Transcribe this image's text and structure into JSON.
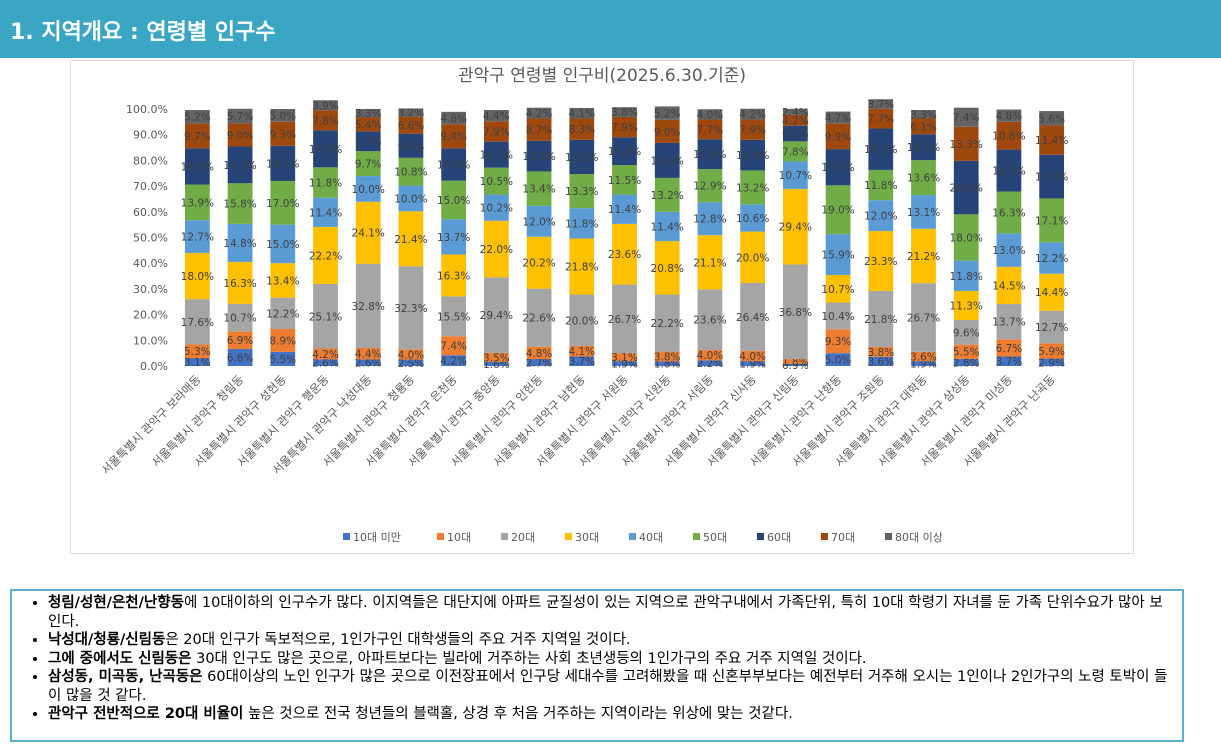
{
  "header": {
    "title": "1. 지역개요 : 연령별 인구수"
  },
  "chart_data": {
    "type": "bar",
    "stacked": true,
    "title": "관악구 연령별 인구비(2025.6.30.기준)",
    "ylim": [
      0,
      100
    ],
    "yticks": [
      "0.0%",
      "10.0%",
      "20.0%",
      "30.0%",
      "40.0%",
      "50.0%",
      "60.0%",
      "70.0%",
      "80.0%",
      "90.0%",
      "100.0%"
    ],
    "legend_position": "bottom",
    "categories": [
      "서울특별시 관악구 보라매동",
      "서울특별시 관악구 청림동",
      "서울특별시 관악구 성현동",
      "서울특별시 관악구 행운동",
      "서울특별시 관악구 낙성대동",
      "서울특별시 관악구 청룡동",
      "서울특별시 관악구 은천동",
      "서울특별시 관악구 중앙동",
      "서울특별시 관악구 인헌동",
      "서울특별시 관악구 남현동",
      "서울특별시 관악구 서원동",
      "서울특별시 관악구 신원동",
      "서울특별시 관악구 서림동",
      "서울특별시 관악구 신사동",
      "서울특별시 관악구 신림동",
      "서울특별시 관악구 난향동",
      "서울특별시 관악구 조원동",
      "서울특별시 관악구 대학동",
      "서울특별시 관악구 삼성동",
      "서울특별시 관악구 미성동",
      "서울특별시 관악구 난곡동"
    ],
    "series": [
      {
        "name": "10대 미만",
        "color": "#4472c4",
        "values": [
          3.1,
          6.6,
          5.5,
          2.6,
          2.6,
          2.5,
          4.2,
          1.6,
          2.7,
          3.7,
          1.9,
          1.8,
          2.2,
          1.9,
          0.9,
          5.0,
          3.6,
          1.9,
          2.8,
          3.7,
          2.9
        ]
      },
      {
        "name": "10대",
        "color": "#ed7d31",
        "values": [
          5.3,
          6.9,
          8.9,
          4.2,
          4.4,
          4.0,
          7.4,
          3.5,
          4.8,
          4.1,
          3.1,
          3.8,
          4.0,
          4.0,
          1.8,
          9.3,
          3.8,
          3.6,
          5.5,
          6.7,
          5.9
        ]
      },
      {
        "name": "20대",
        "color": "#a5a5a5",
        "values": [
          17.6,
          10.7,
          12.2,
          25.1,
          32.8,
          32.3,
          15.5,
          29.4,
          22.6,
          20.0,
          26.7,
          22.2,
          23.6,
          26.4,
          36.8,
          10.4,
          21.8,
          26.7,
          9.6,
          13.7,
          12.7
        ]
      },
      {
        "name": "30대",
        "color": "#ffc000",
        "values": [
          18.0,
          16.3,
          13.4,
          22.2,
          24.1,
          21.4,
          16.3,
          22.0,
          20.2,
          21.8,
          23.6,
          20.8,
          21.1,
          20.0,
          29.4,
          10.7,
          23.3,
          21.2,
          11.3,
          14.5,
          14.4
        ]
      },
      {
        "name": "40대",
        "color": "#5b9bd5",
        "values": [
          12.7,
          14.8,
          15.0,
          11.4,
          10.0,
          10.0,
          13.7,
          10.2,
          12.0,
          11.8,
          11.4,
          11.4,
          12.8,
          10.6,
          10.7,
          15.9,
          12.0,
          13.1,
          11.8,
          13.0,
          12.2
        ]
      },
      {
        "name": "50대",
        "color": "#70ad47",
        "values": [
          13.9,
          15.8,
          17.0,
          11.8,
          9.7,
          10.8,
          15.0,
          10.5,
          13.4,
          13.3,
          11.5,
          13.2,
          12.9,
          13.2,
          7.8,
          19.0,
          11.8,
          13.6,
          18.0,
          16.3,
          17.1
        ]
      },
      {
        "name": "60대",
        "color": "#264478",
        "values": [
          14.1,
          14.3,
          13.7,
          14.4,
          7.7,
          9.4,
          12.6,
          10.1,
          11.9,
          13.3,
          10.8,
          13.6,
          11.6,
          11.9,
          6.1,
          14.1,
          16.1,
          10.1,
          20.8,
          16.3,
          17.0
        ]
      },
      {
        "name": "70대",
        "color": "#9e480e",
        "values": [
          9.7,
          9.0,
          9.3,
          7.8,
          5.4,
          6.6,
          9.4,
          7.9,
          8.7,
          8.3,
          7.9,
          9.0,
          7.7,
          7.9,
          4.2,
          9.9,
          7.7,
          6.1,
          13.3,
          10.8,
          11.4
        ]
      },
      {
        "name": "80대 이상",
        "color": "#636363",
        "values": [
          5.2,
          5.7,
          5.0,
          3.9,
          3.3,
          3.2,
          4.8,
          4.4,
          4.2,
          4.1,
          3.8,
          5.2,
          4.0,
          4.2,
          2.4,
          4.7,
          3.7,
          3.3,
          7.4,
          4.8,
          5.6
        ]
      }
    ]
  },
  "notes": {
    "items": [
      {
        "bold": "청림/성현/은천/난향동",
        "text": "에 10대이하의 인구수가 많다. 이지역들은 대단지에 아파트 균질성이 있는 지역으로 관악구내에서 가족단위, 특히 10대 학령기 자녀를 둔 가족 단위수요가 많아 보인다."
      },
      {
        "bold": "낙성대/청룡/신림동",
        "text": "은 20대 인구가 독보적으로, 1인가구인 대학생들의 주요 거주 지역일 것이다."
      },
      {
        "bold": "그에 중에서도 신림동은",
        "text": " 30대 인구도 많은 곳으로, 아파트보다는 빌라에 거주하는 사회 초년생등의 1인가구의 주요 거주 지역일 것이다."
      },
      {
        "bold": "삼성동, 미곡동, 난곡동은",
        "text": " 60대이상의 노인 인구가 많은 곳으로 이전장표에서 인구당 세대수를 고려해봤을 때 신혼부부보다는 예전부터 거주해 오시는 1인이나 2인가구의 노령 토박이 들이 많을 것 같다."
      },
      {
        "bold": "관악구 전반적으로 20대 비율이",
        "text": " 높은 것으로 전국 청년들의 블랙홀, 상경 후 처음 거주하는 지역이라는 위상에 맞는 것같다."
      }
    ]
  }
}
